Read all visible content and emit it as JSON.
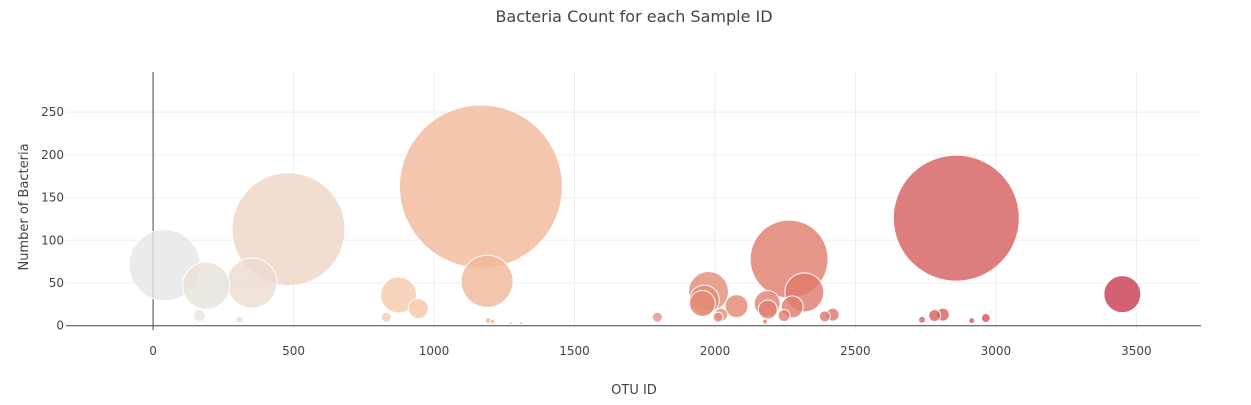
{
  "chart_data": {
    "type": "scatter",
    "subtype": "bubble",
    "title": "Bacteria Count for each Sample ID",
    "xlabel": "OTU ID",
    "ylabel": "Number of Bacteria",
    "xlim": [
      -310,
      3730
    ],
    "ylim": [
      -5,
      297
    ],
    "x_ticks": [
      0,
      500,
      1000,
      1500,
      2000,
      2500,
      3000,
      3500
    ],
    "y_ticks": [
      0,
      50,
      100,
      150,
      200,
      250
    ],
    "grid": true,
    "legend": "none",
    "colorscale": [
      "#e6e6e6",
      "#f5c8a8",
      "#e7977c",
      "#dc6b62",
      "#c83a4e"
    ],
    "points": [
      {
        "x": 41,
        "y": 71,
        "size": 71
      },
      {
        "x": 165,
        "y": 12,
        "size": 12
      },
      {
        "x": 189,
        "y": 47,
        "size": 47
      },
      {
        "x": 307,
        "y": 7,
        "size": 7
      },
      {
        "x": 352,
        "y": 50,
        "size": 50
      },
      {
        "x": 482,
        "y": 113,
        "size": 113
      },
      {
        "x": 830,
        "y": 10,
        "size": 10
      },
      {
        "x": 874,
        "y": 36,
        "size": 36
      },
      {
        "x": 944,
        "y": 20,
        "size": 20
      },
      {
        "x": 1167,
        "y": 163,
        "size": 163
      },
      {
        "x": 1189,
        "y": 52,
        "size": 52
      },
      {
        "x": 1193,
        "y": 6,
        "size": 6
      },
      {
        "x": 1208,
        "y": 5,
        "size": 5
      },
      {
        "x": 1274,
        "y": 3,
        "size": 3
      },
      {
        "x": 1309,
        "y": 3,
        "size": 3
      },
      {
        "x": 1795,
        "y": 10,
        "size": 10
      },
      {
        "x": 1955,
        "y": 26,
        "size": 26
      },
      {
        "x": 1962,
        "y": 30,
        "size": 30
      },
      {
        "x": 1977,
        "y": 40,
        "size": 40
      },
      {
        "x": 2011,
        "y": 10,
        "size": 10
      },
      {
        "x": 2022,
        "y": 13,
        "size": 13
      },
      {
        "x": 2077,
        "y": 23,
        "size": 23
      },
      {
        "x": 2178,
        "y": 5,
        "size": 5
      },
      {
        "x": 2186,
        "y": 26,
        "size": 26
      },
      {
        "x": 2188,
        "y": 19,
        "size": 19
      },
      {
        "x": 2246,
        "y": 12,
        "size": 12
      },
      {
        "x": 2264,
        "y": 78,
        "size": 78
      },
      {
        "x": 2275,
        "y": 22,
        "size": 22
      },
      {
        "x": 2318,
        "y": 39,
        "size": 39
      },
      {
        "x": 2391,
        "y": 11,
        "size": 11
      },
      {
        "x": 2419,
        "y": 13,
        "size": 13
      },
      {
        "x": 2737,
        "y": 7,
        "size": 7
      },
      {
        "x": 2782,
        "y": 12,
        "size": 12
      },
      {
        "x": 2811,
        "y": 13,
        "size": 13
      },
      {
        "x": 2859,
        "y": 126,
        "size": 126
      },
      {
        "x": 2914,
        "y": 6,
        "size": 6
      },
      {
        "x": 2964,
        "y": 9,
        "size": 9
      },
      {
        "x": 3450,
        "y": 37,
        "size": 37
      }
    ]
  }
}
